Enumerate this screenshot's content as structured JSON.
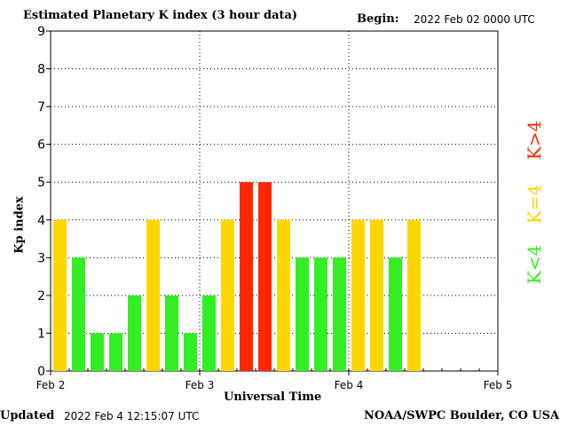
{
  "header": {
    "title": "Estimated Planetary K index (3 hour data)",
    "begin_label": "Begin:",
    "begin_value": "2022 Feb 02 0000 UTC"
  },
  "footer": {
    "updated_label": "Updated",
    "updated_value": "2022 Feb  4 12:15:07 UTC",
    "source": "NOAA/SWPC Boulder, CO USA"
  },
  "legend": {
    "low": "K<4",
    "mid": "K=4",
    "high": "K>4"
  },
  "colors": {
    "low": "#33ee22",
    "mid": "#ffd700",
    "high": "#ff2600"
  },
  "chart_data": {
    "type": "bar",
    "xlabel": "Universal Time",
    "ylabel": "Kp index",
    "ylim": [
      0,
      9
    ],
    "yticks": [
      "0",
      "1",
      "2",
      "3",
      "4",
      "5",
      "6",
      "7",
      "8",
      "9"
    ],
    "xticks": [
      "Feb 2",
      "Feb 3",
      "Feb 4",
      "Feb 5"
    ],
    "interval_hours": 3,
    "values": [
      4,
      3,
      1,
      1,
      2,
      4,
      2,
      1,
      2,
      4,
      5,
      5,
      4,
      3,
      3,
      3,
      4,
      4,
      3,
      4
    ],
    "grid": true
  }
}
